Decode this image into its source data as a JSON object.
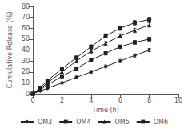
{
  "chart_data": {
    "type": "line",
    "xlabel": "Time (h)",
    "ylabel": "Cumulative Release (%)",
    "x": [
      0,
      0.5,
      1,
      2,
      3,
      4,
      5,
      6,
      7,
      8
    ],
    "series": [
      {
        "name": "OM3",
        "color": "#222222",
        "marker": "diamond",
        "values": [
          0,
          2.5,
          5,
          10,
          15,
          20,
          25,
          30,
          35,
          40
        ],
        "errors": [
          0,
          0.5,
          0.8,
          1.0,
          1.2,
          1.3,
          1.3,
          1.4,
          1.5,
          1.5
        ]
      },
      {
        "name": "OM4",
        "color": "#222222",
        "marker": "square",
        "values": [
          0,
          3.5,
          8,
          16,
          23,
          31,
          37,
          43,
          47,
          50
        ],
        "errors": [
          0,
          0.5,
          0.8,
          1.2,
          1.3,
          1.5,
          1.5,
          1.6,
          1.7,
          1.7
        ]
      },
      {
        "name": "OM5",
        "color": "#222222",
        "marker": "triangle",
        "values": [
          0,
          4.5,
          10,
          20,
          30,
          39,
          46,
          53,
          58,
          63
        ],
        "errors": [
          0,
          0.6,
          0.9,
          1.3,
          1.5,
          1.7,
          1.8,
          1.9,
          2.0,
          2.0
        ]
      },
      {
        "name": "OM6",
        "color": "#222222",
        "marker": "square",
        "values": [
          0,
          5.5,
          12,
          23,
          33,
          43,
          53,
          60,
          65,
          68
        ],
        "errors": [
          0,
          0.6,
          1.0,
          1.4,
          1.6,
          1.8,
          1.9,
          2.0,
          2.1,
          2.1
        ]
      }
    ],
    "xlim": [
      0,
      10
    ],
    "ylim": [
      0,
      80
    ],
    "xticks": [
      0,
      2,
      4,
      6,
      8,
      10
    ],
    "yticks": [
      0,
      10,
      20,
      30,
      40,
      50,
      60,
      70,
      80
    ],
    "grid": false,
    "legend": "bottom"
  }
}
